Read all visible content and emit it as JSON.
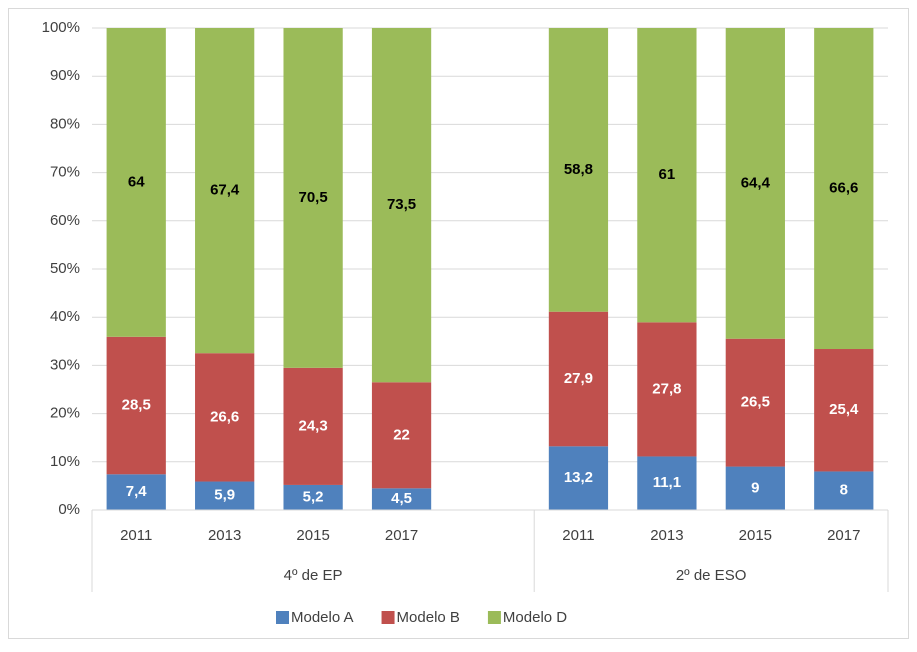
{
  "chart_data": {
    "type": "bar",
    "stacked": "percent",
    "categories": [
      "2011",
      "2013",
      "2015",
      "2017",
      null,
      "2011",
      "2013",
      "2015",
      "2017"
    ],
    "groups": [
      {
        "label": "4º de EP",
        "span": 5
      },
      {
        "label": "2º de ESO",
        "span": 4
      }
    ],
    "series": [
      {
        "name": "Modelo A",
        "color": "#4f81bd",
        "label_color": "#ffffff",
        "values": [
          7.4,
          5.9,
          5.2,
          4.5,
          null,
          13.2,
          11.1,
          9,
          8
        ],
        "value_labels": [
          "7,4",
          "5,9",
          "5,2",
          "4,5",
          null,
          "13,2",
          "11,1",
          "9",
          "8"
        ]
      },
      {
        "name": "Modelo B",
        "color": "#c0504d",
        "label_color": "#ffffff",
        "values": [
          28.5,
          26.6,
          24.3,
          22,
          null,
          27.9,
          27.8,
          26.5,
          25.4
        ],
        "value_labels": [
          "28,5",
          "26,6",
          "24,3",
          "22",
          null,
          "27,9",
          "27,8",
          "26,5",
          "25,4"
        ]
      },
      {
        "name": "Modelo D",
        "color": "#9bbb59",
        "label_color": "#000000",
        "values": [
          64,
          67.4,
          70.5,
          73.5,
          null,
          58.8,
          61,
          64.4,
          66.6
        ],
        "value_labels": [
          "64",
          "67,4",
          "70,5",
          "73,5",
          null,
          "58,8",
          "61",
          "64,4",
          "66,6"
        ]
      }
    ],
    "ylim": [
      0,
      100
    ],
    "yticks": [
      {
        "value": 0,
        "label": "0%"
      },
      {
        "value": 10,
        "label": "10%"
      },
      {
        "value": 20,
        "label": "20%"
      },
      {
        "value": 30,
        "label": "30%"
      },
      {
        "value": 40,
        "label": "40%"
      },
      {
        "value": 50,
        "label": "50%"
      },
      {
        "value": 60,
        "label": "60%"
      },
      {
        "value": 70,
        "label": "70%"
      },
      {
        "value": 80,
        "label": "80%"
      },
      {
        "value": 90,
        "label": "90%"
      },
      {
        "value": 100,
        "label": "100%"
      }
    ],
    "grid": true,
    "legend": "bottom"
  }
}
